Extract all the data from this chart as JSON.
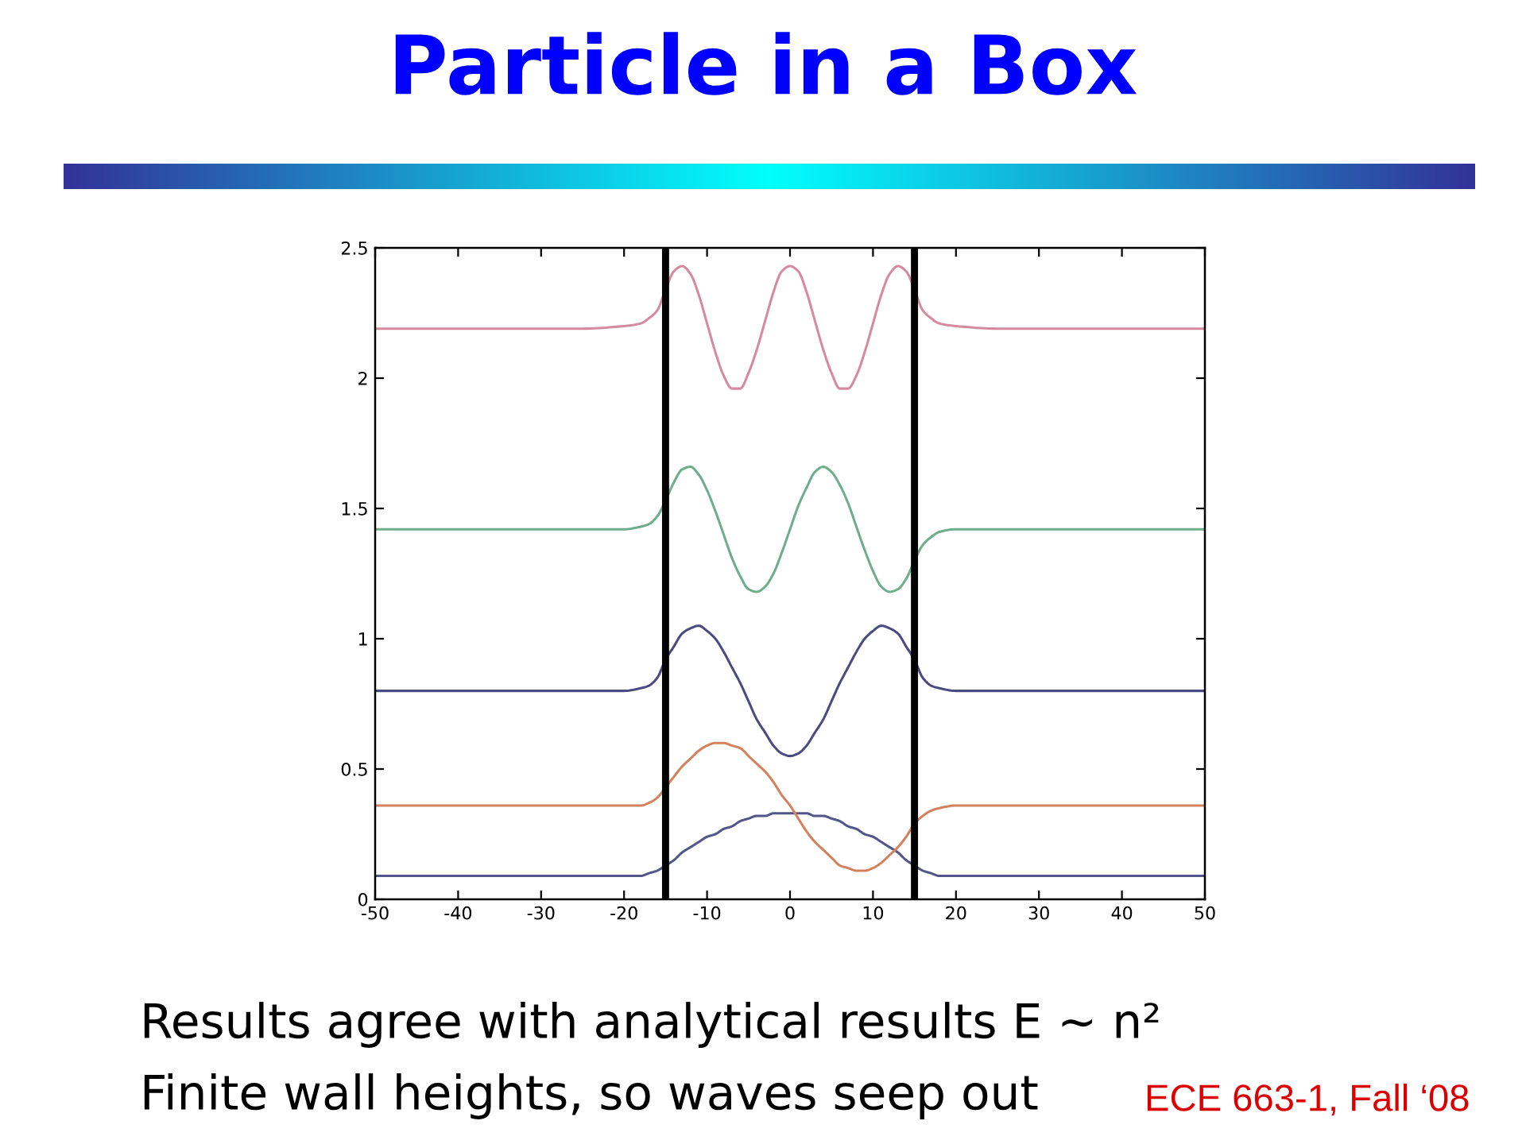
{
  "chart_data": {
    "type": "line",
    "title": "Particle in a Box",
    "annotations": [
      "Results agree with analytical results E ~ n²",
      "Finite wall heights, so waves seep out",
      "ECE 663-1, Fall ‘08"
    ],
    "x": [
      -50,
      -25,
      -20,
      -18,
      -17,
      -16,
      -15,
      -14,
      -13,
      -12,
      -11,
      -10,
      -9,
      -8,
      -7,
      -6,
      -5,
      -4,
      -3,
      -2,
      -1,
      0,
      1,
      2,
      3,
      4,
      5,
      6,
      7,
      8,
      9,
      10,
      11,
      12,
      13,
      14,
      15,
      16,
      17,
      18,
      20,
      25,
      50
    ],
    "series": [
      {
        "color": "#55558a",
        "values": [
          0.09,
          0.09,
          0.09,
          0.09,
          0.1,
          0.11,
          0.13,
          0.15,
          0.18,
          0.2,
          0.22,
          0.24,
          0.25,
          0.27,
          0.28,
          0.3,
          0.31,
          0.32,
          0.32,
          0.33,
          0.33,
          0.33,
          0.33,
          0.33,
          0.32,
          0.32,
          0.31,
          0.3,
          0.28,
          0.27,
          0.25,
          0.24,
          0.22,
          0.2,
          0.18,
          0.15,
          0.13,
          0.11,
          0.1,
          0.09,
          0.09,
          0.09,
          0.09
        ]
      },
      {
        "color": "#d4825e",
        "values": [
          0.36,
          0.36,
          0.36,
          0.36,
          0.37,
          0.39,
          0.43,
          0.47,
          0.51,
          0.54,
          0.57,
          0.59,
          0.6,
          0.6,
          0.59,
          0.58,
          0.55,
          0.52,
          0.49,
          0.45,
          0.4,
          0.36,
          0.31,
          0.26,
          0.22,
          0.19,
          0.16,
          0.13,
          0.12,
          0.11,
          0.11,
          0.12,
          0.14,
          0.17,
          0.2,
          0.24,
          0.29,
          0.32,
          0.34,
          0.35,
          0.36,
          0.36,
          0.36
        ]
      },
      {
        "color": "#4b4b82",
        "values": [
          0.8,
          0.8,
          0.8,
          0.81,
          0.82,
          0.85,
          0.92,
          0.97,
          1.02,
          1.04,
          1.05,
          1.03,
          1.0,
          0.95,
          0.89,
          0.83,
          0.76,
          0.69,
          0.64,
          0.59,
          0.56,
          0.55,
          0.56,
          0.59,
          0.64,
          0.69,
          0.76,
          0.83,
          0.89,
          0.95,
          1.0,
          1.03,
          1.05,
          1.04,
          1.02,
          0.97,
          0.92,
          0.85,
          0.82,
          0.81,
          0.8,
          0.8,
          0.8
        ]
      },
      {
        "color": "#6fae8c",
        "values": [
          1.42,
          1.42,
          1.42,
          1.43,
          1.44,
          1.47,
          1.53,
          1.6,
          1.65,
          1.66,
          1.63,
          1.57,
          1.49,
          1.4,
          1.31,
          1.24,
          1.19,
          1.18,
          1.2,
          1.25,
          1.33,
          1.42,
          1.51,
          1.58,
          1.64,
          1.66,
          1.64,
          1.59,
          1.52,
          1.43,
          1.34,
          1.26,
          1.2,
          1.18,
          1.19,
          1.23,
          1.3,
          1.36,
          1.39,
          1.41,
          1.42,
          1.42,
          1.42
        ]
      },
      {
        "color": "#d68aa0",
        "values": [
          2.19,
          2.19,
          2.2,
          2.21,
          2.23,
          2.26,
          2.34,
          2.41,
          2.43,
          2.4,
          2.32,
          2.21,
          2.1,
          2.01,
          1.96,
          1.96,
          2.02,
          2.11,
          2.22,
          2.33,
          2.41,
          2.43,
          2.41,
          2.33,
          2.22,
          2.11,
          2.02,
          1.96,
          1.96,
          2.01,
          2.1,
          2.21,
          2.32,
          2.4,
          2.43,
          2.41,
          2.34,
          2.26,
          2.23,
          2.21,
          2.2,
          2.19,
          2.19
        ]
      }
    ],
    "xlim": [
      -50,
      50
    ],
    "xticks": [
      -50,
      -40,
      -30,
      -20,
      -10,
      0,
      10,
      20,
      30,
      40,
      50
    ],
    "ylim": [
      0,
      2.5
    ],
    "yticks": [
      0,
      0.5,
      1,
      1.5,
      2,
      2.5
    ],
    "ref_lines": [
      {
        "axis": "x",
        "value": -15,
        "color": "#000000"
      },
      {
        "axis": "x",
        "value": 15,
        "color": "#000000"
      }
    ]
  }
}
